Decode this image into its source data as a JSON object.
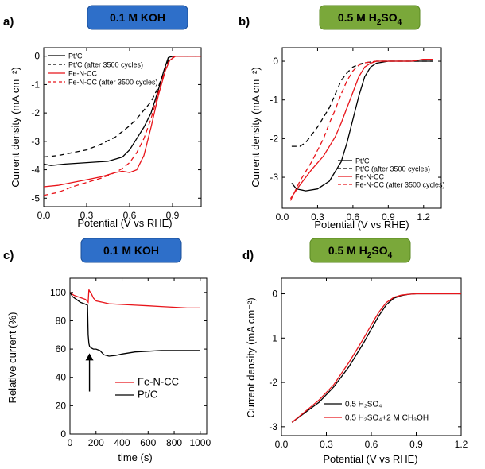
{
  "chart_data": [
    {
      "panel": "a)",
      "badge": {
        "text": "0.1 M KOH",
        "color": "#2e6fc9"
      },
      "type": "line",
      "xlabel": "Potential (V vs RHE)",
      "ylabel": "Current density (mA cm⁻²)",
      "xlim": [
        0,
        1.1
      ],
      "ylim": [
        -5.3,
        0.3
      ],
      "xticks": [
        0.0,
        0.3,
        0.6,
        0.9
      ],
      "yticks": [
        0,
        -1,
        -2,
        -3,
        -4,
        -5
      ],
      "xtick_labels": [
        "0.0",
        "0.3",
        "0.6",
        "0.9"
      ],
      "ytick_labels": [
        "0",
        "-1",
        "-2",
        "-3",
        "-4",
        "-5"
      ],
      "series": [
        {
          "name": "Pt/C",
          "color": "#000000",
          "dash": "",
          "x": [
            0,
            0.05,
            0.15,
            0.3,
            0.45,
            0.55,
            0.6,
            0.65,
            0.7,
            0.75,
            0.8,
            0.84,
            0.87,
            0.9,
            1.0,
            1.1
          ],
          "y": [
            -3.8,
            -3.85,
            -3.8,
            -3.75,
            -3.7,
            -3.55,
            -3.3,
            -2.9,
            -2.5,
            -2.0,
            -1.2,
            -0.5,
            -0.05,
            0,
            0,
            0
          ]
        },
        {
          "name": "Pt/C (after 3500 cycles)",
          "color": "#000000",
          "dash": "6,4",
          "x": [
            0,
            0.1,
            0.2,
            0.3,
            0.4,
            0.5,
            0.6,
            0.65,
            0.7,
            0.75,
            0.8,
            0.85,
            0.88,
            0.9,
            1.0,
            1.1
          ],
          "y": [
            -3.55,
            -3.5,
            -3.4,
            -3.3,
            -3.1,
            -2.85,
            -2.45,
            -2.2,
            -1.9,
            -1.6,
            -1.1,
            -0.4,
            -0.05,
            0,
            0,
            0
          ]
        },
        {
          "name": "Fe-N-CC",
          "color": "#e8141a",
          "dash": "",
          "x": [
            0,
            0.1,
            0.2,
            0.3,
            0.4,
            0.5,
            0.55,
            0.6,
            0.65,
            0.7,
            0.75,
            0.8,
            0.85,
            0.88,
            0.92,
            1.0,
            1.1
          ],
          "y": [
            -4.6,
            -4.55,
            -4.45,
            -4.35,
            -4.25,
            -4.1,
            -4.05,
            -4.1,
            -4.0,
            -3.5,
            -2.5,
            -1.4,
            -0.5,
            -0.15,
            0,
            0,
            0
          ]
        },
        {
          "name": "Fe-N-CC (after 3500 cycles)",
          "color": "#e8141a",
          "dash": "6,4",
          "x": [
            0,
            0.1,
            0.2,
            0.3,
            0.4,
            0.5,
            0.55,
            0.6,
            0.65,
            0.7,
            0.75,
            0.8,
            0.85,
            0.88,
            0.92,
            1.0,
            1.1
          ],
          "y": [
            -4.9,
            -4.8,
            -4.6,
            -4.45,
            -4.3,
            -4.1,
            -3.95,
            -3.75,
            -3.4,
            -2.9,
            -2.2,
            -1.3,
            -0.45,
            -0.12,
            0,
            0,
            0
          ]
        }
      ],
      "legend_position": "top-left"
    },
    {
      "panel": "b)",
      "badge": {
        "text": "0.5 M H",
        "sub": "2",
        "text2": "SO",
        "sub2": "4",
        "color": "#7aa83a"
      },
      "type": "line",
      "xlabel": "Potential (V vs RHE)",
      "ylabel": "Current density (mA cm⁻²)",
      "xlim": [
        0,
        1.35
      ],
      "ylim": [
        -3.8,
        0.35
      ],
      "xticks": [
        0.0,
        0.3,
        0.6,
        0.9,
        1.2
      ],
      "yticks": [
        0,
        -1,
        -2,
        -3
      ],
      "xtick_labels": [
        "0.0",
        "0.3",
        "0.6",
        "0.9",
        "1.2"
      ],
      "ytick_labels": [
        "0",
        "-1",
        "-2",
        "-3"
      ],
      "series": [
        {
          "name": "Pt/C",
          "color": "#000000",
          "dash": "",
          "x": [
            0.08,
            0.12,
            0.2,
            0.3,
            0.4,
            0.5,
            0.55,
            0.6,
            0.65,
            0.7,
            0.75,
            0.8,
            0.9,
            1.0,
            1.1,
            1.2,
            1.28
          ],
          "y": [
            -3.15,
            -3.3,
            -3.35,
            -3.3,
            -3.1,
            -2.6,
            -2.1,
            -1.5,
            -0.9,
            -0.4,
            -0.15,
            -0.05,
            0,
            0,
            0,
            0,
            0
          ]
        },
        {
          "name": "Pt/C (after 3500 cycles)",
          "color": "#000000",
          "dash": "6,4",
          "x": [
            0.08,
            0.15,
            0.2,
            0.3,
            0.4,
            0.45,
            0.5,
            0.55,
            0.6,
            0.65,
            0.7,
            0.8,
            0.9,
            1.0,
            1.1,
            1.2,
            1.28
          ],
          "y": [
            -2.2,
            -2.2,
            -2.1,
            -1.7,
            -1.2,
            -0.85,
            -0.5,
            -0.3,
            -0.15,
            -0.08,
            -0.04,
            0,
            0,
            0,
            0,
            0,
            0
          ]
        },
        {
          "name": "Fe-N-CC",
          "color": "#e8141a",
          "dash": "",
          "x": [
            0.07,
            0.15,
            0.25,
            0.35,
            0.45,
            0.5,
            0.55,
            0.6,
            0.65,
            0.7,
            0.75,
            0.8,
            0.9,
            1.0,
            1.1,
            1.2,
            1.28
          ],
          "y": [
            -3.55,
            -3.2,
            -2.8,
            -2.45,
            -1.95,
            -1.6,
            -1.2,
            -0.8,
            -0.4,
            -0.15,
            -0.05,
            0,
            0,
            0,
            0,
            0.05,
            0.05
          ]
        },
        {
          "name": "Fe-N-CC (after 3500 cycles)",
          "color": "#e8141a",
          "dash": "6,4",
          "x": [
            0.07,
            0.15,
            0.25,
            0.35,
            0.4,
            0.45,
            0.5,
            0.55,
            0.6,
            0.65,
            0.7,
            0.8,
            0.9,
            1.0,
            1.1,
            1.2,
            1.28
          ],
          "y": [
            -3.6,
            -3.1,
            -2.6,
            -2.0,
            -1.6,
            -1.25,
            -0.85,
            -0.5,
            -0.25,
            -0.1,
            -0.04,
            0,
            0,
            0,
            0,
            0.05,
            0.05
          ]
        }
      ],
      "legend_position": "bottom-right"
    },
    {
      "panel": "c)",
      "badge": {
        "text": "0.1 M KOH",
        "color": "#2e6fc9"
      },
      "type": "line",
      "xlabel": "time (s)",
      "ylabel": "Relative current (%)",
      "xlim": [
        0,
        1050
      ],
      "ylim": [
        0,
        110
      ],
      "xticks": [
        0,
        200,
        400,
        600,
        800,
        1000
      ],
      "yticks": [
        0,
        20,
        40,
        60,
        80,
        100
      ],
      "xtick_labels": [
        "0",
        "200",
        "400",
        "600",
        "800",
        "1000"
      ],
      "ytick_labels": [
        "0",
        "20",
        "40",
        "60",
        "80",
        "100"
      ],
      "series": [
        {
          "name": "Fe-N-CC",
          "color": "#e8141a",
          "dash": "",
          "x": [
            0,
            30,
            60,
            90,
            120,
            140,
            145,
            150,
            165,
            180,
            200,
            250,
            300,
            400,
            500,
            600,
            700,
            800,
            900,
            1000
          ],
          "y": [
            100,
            98,
            97,
            96,
            95,
            93,
            102,
            101,
            99,
            96,
            94,
            93,
            92,
            91.5,
            91,
            90.5,
            90,
            89.5,
            89,
            89
          ]
        },
        {
          "name": "Pt/C",
          "color": "#000000",
          "dash": "",
          "x": [
            0,
            20,
            50,
            80,
            110,
            135,
            140,
            145,
            150,
            160,
            180,
            200,
            230,
            260,
            300,
            350,
            400,
            500,
            600,
            700,
            800,
            900,
            1000
          ],
          "y": [
            100,
            97,
            95,
            93,
            92,
            91,
            70,
            64,
            62,
            61,
            60,
            60,
            59,
            56,
            55,
            55.5,
            56.5,
            58,
            58.5,
            59,
            59,
            59,
            59
          ]
        }
      ],
      "annotation": "arrow-up",
      "arrow_x": 150,
      "arrow_y_from": 30,
      "arrow_y_to": 57,
      "legend_position": "bottom-right"
    },
    {
      "panel": "d)",
      "badge": {
        "text": "0.5 M H",
        "sub": "2",
        "text2": "SO",
        "sub2": "4",
        "color": "#7aa83a"
      },
      "type": "line",
      "xlabel": "Potential (V vs RHE)",
      "ylabel": "Current density (mA cm⁻²)",
      "xlim": [
        0,
        1.2
      ],
      "ylim": [
        -3.2,
        0.35
      ],
      "xticks": [
        0.0,
        0.3,
        0.6,
        0.9,
        1.2
      ],
      "yticks": [
        0,
        -1,
        -2,
        -3
      ],
      "xtick_labels": [
        "0.0",
        "0.3",
        "0.6",
        "0.9",
        "1.2"
      ],
      "ytick_labels": [
        "0",
        "-1",
        "-2",
        "-3"
      ],
      "series": [
        {
          "name": "0.5 H₂SO₄",
          "color": "#000000",
          "dash": "",
          "x": [
            0.07,
            0.15,
            0.25,
            0.35,
            0.45,
            0.55,
            0.6,
            0.65,
            0.7,
            0.75,
            0.8,
            0.85,
            0.9,
            1.0,
            1.1,
            1.2
          ],
          "y": [
            -2.9,
            -2.7,
            -2.45,
            -2.1,
            -1.65,
            -1.1,
            -0.8,
            -0.5,
            -0.25,
            -0.1,
            -0.04,
            -0.01,
            0,
            0,
            0,
            0
          ]
        },
        {
          "name": "0.5 H₂SO₄+2 M CH₃OH",
          "color": "#e8141a",
          "dash": "",
          "x": [
            0.07,
            0.15,
            0.25,
            0.35,
            0.45,
            0.55,
            0.6,
            0.65,
            0.7,
            0.75,
            0.8,
            0.85,
            0.9,
            1.0,
            1.1,
            1.2
          ],
          "y": [
            -2.9,
            -2.68,
            -2.4,
            -2.05,
            -1.55,
            -1.0,
            -0.7,
            -0.42,
            -0.2,
            -0.08,
            -0.03,
            -0.01,
            0,
            0,
            0,
            0
          ]
        }
      ],
      "legend_position": "bottom-right"
    }
  ]
}
